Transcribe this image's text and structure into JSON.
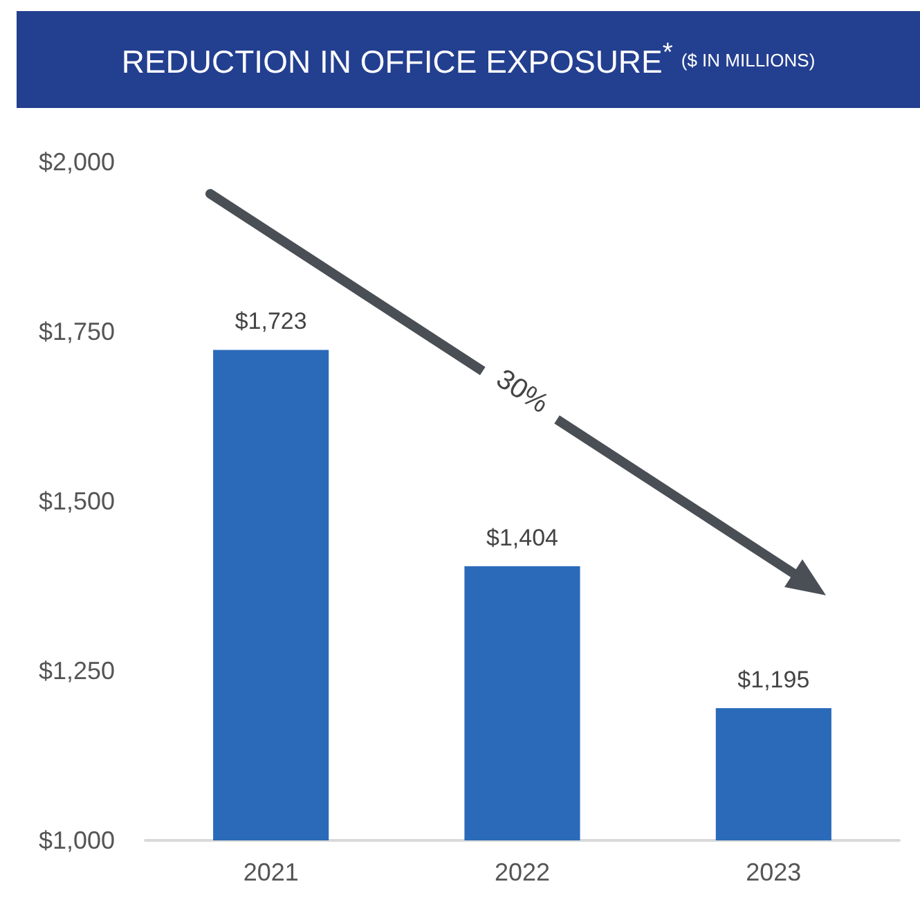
{
  "chart_data": {
    "type": "bar",
    "title": "REDUCTION IN OFFICE EXPOSURE$^{*}$",
    "subtitle": "($ IN MILLIONS)",
    "categories": [
      "2021",
      "2022",
      "2023"
    ],
    "values": [
      1723,
      1404,
      1195
    ],
    "color": "#2a6ab8",
    "value_labels": [
      "$1,723",
      "$1,404",
      "$1,195"
    ],
    "ylim": [
      1000,
      2000
    ],
    "yticks": [
      {
        "value": 1000,
        "label": "$1,000"
      },
      {
        "value": 1250,
        "label": "$1,250"
      },
      {
        "value": 1500,
        "label": "$1,500"
      },
      {
        "value": 1750,
        "label": "$1,750"
      },
      {
        "value": 2000,
        "label": "$2,000"
      }
    ],
    "grid": false,
    "annotations": [
      "30%"
    ]
  }
}
